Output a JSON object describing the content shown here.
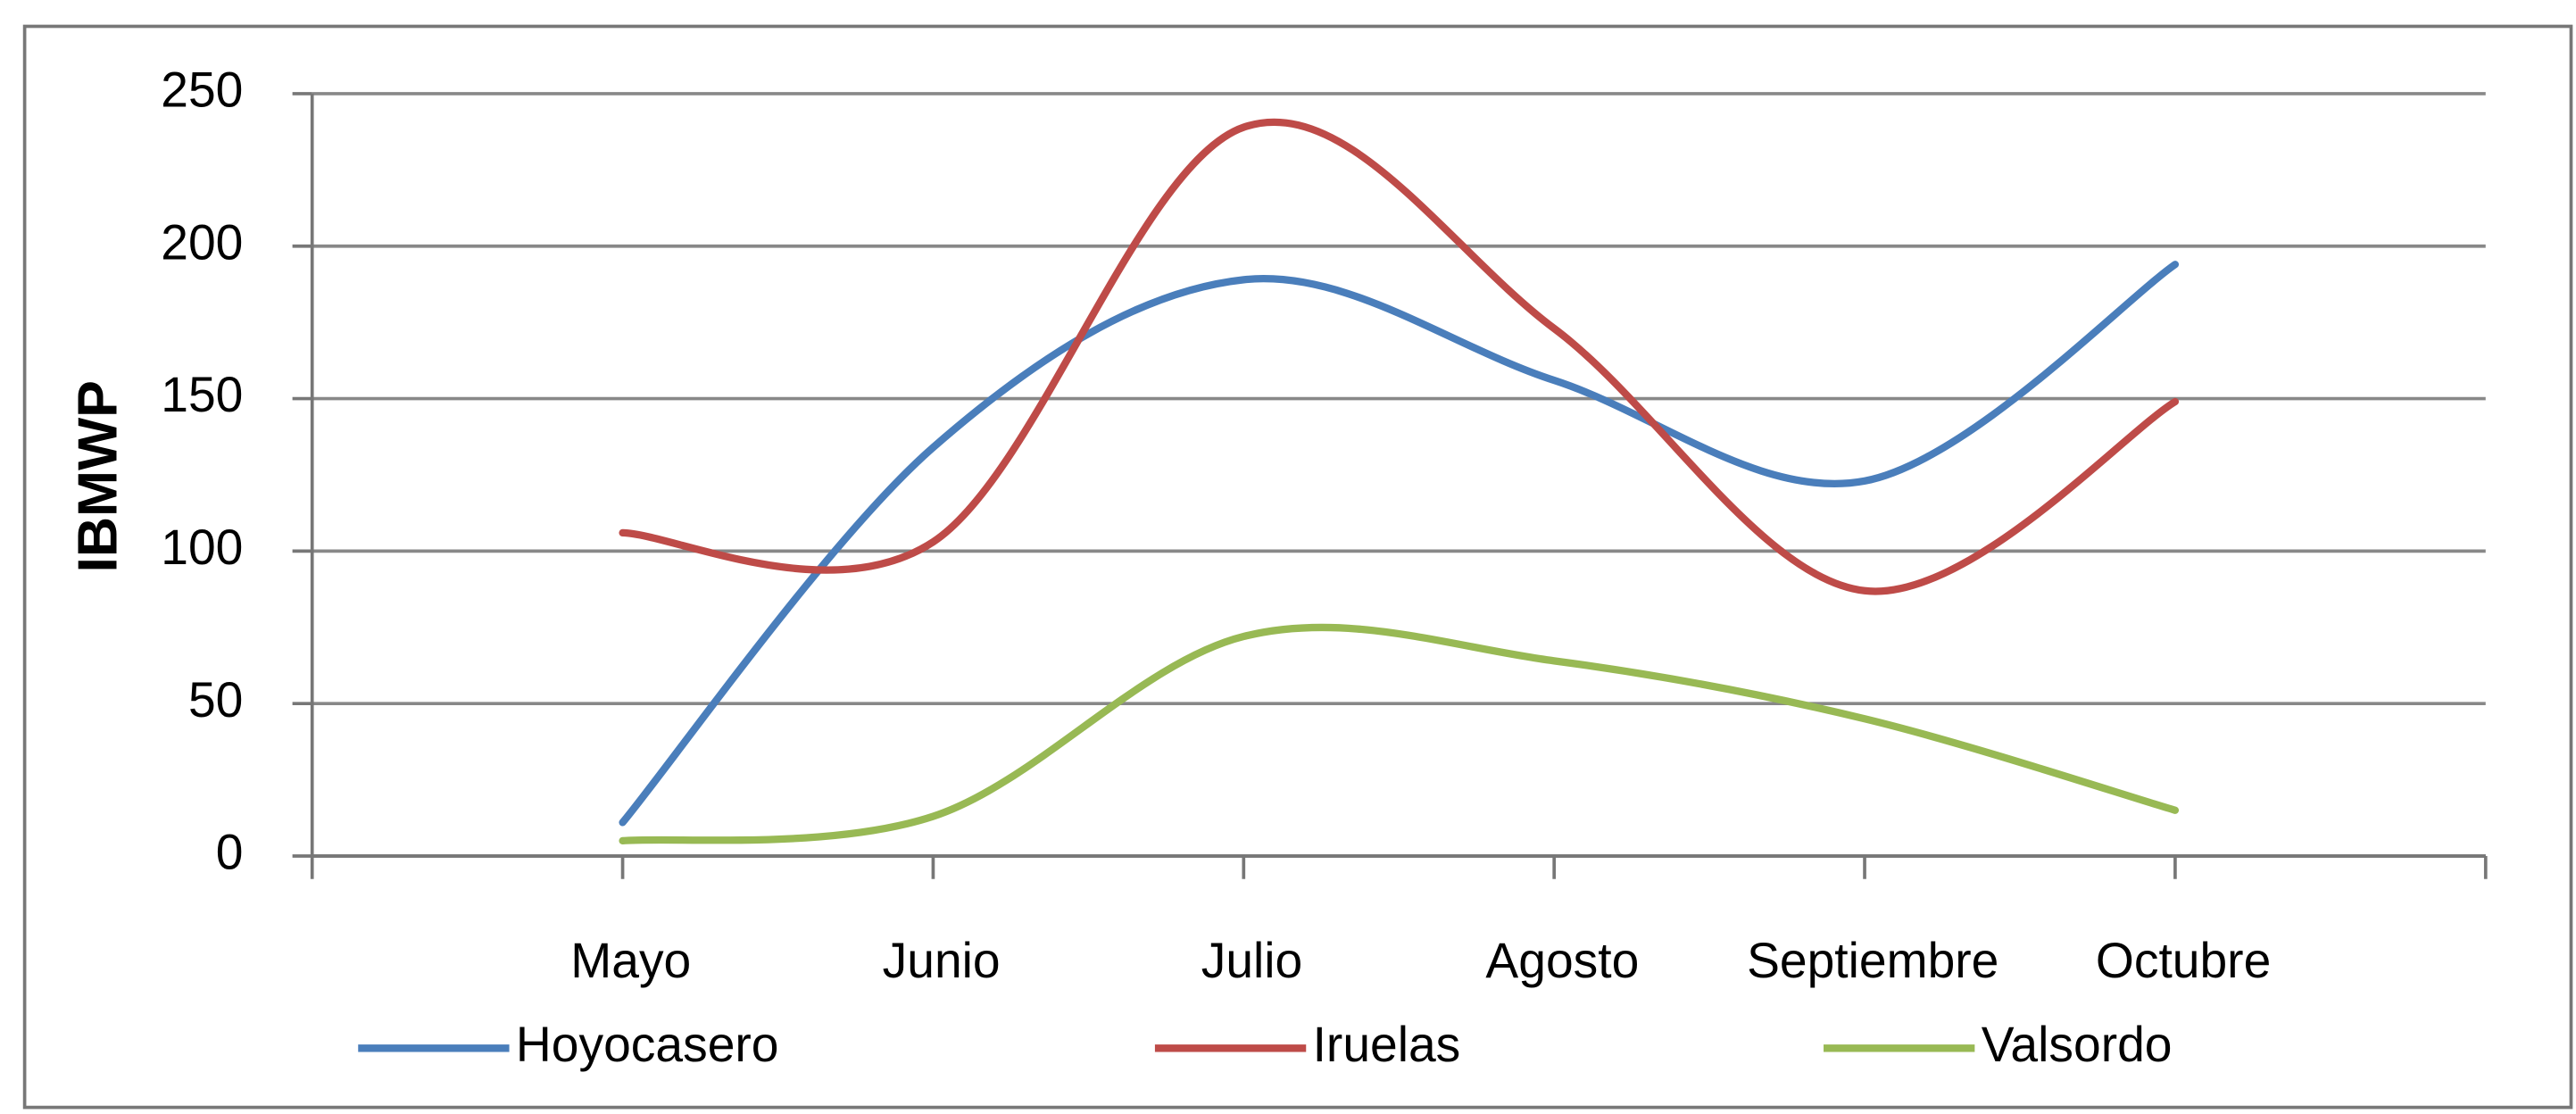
{
  "chart_data": {
    "type": "line",
    "y_label": "IBMWP",
    "categories": [
      null,
      "Mayo",
      "Junio",
      "Julio",
      "Agosto",
      "Septiembre",
      "Octubre",
      null
    ],
    "series": [
      {
        "name": "Hoyocasero",
        "color": "#4a7ebb",
        "values": [
          null,
          11,
          134,
          189,
          156,
          123,
          194,
          null
        ]
      },
      {
        "name": "Iruelas",
        "color": "#be4b48",
        "values": [
          null,
          106,
          103,
          239,
          173,
          87,
          149,
          null
        ]
      },
      {
        "name": "Valsordo",
        "color": "#98b954",
        "values": [
          null,
          5,
          13,
          72,
          64,
          45,
          15,
          null
        ]
      }
    ],
    "ylim": [
      0,
      250
    ],
    "yticks": [
      0,
      50,
      100,
      150,
      200,
      250
    ],
    "grid": true,
    "smooth": true,
    "legend": "bottom"
  }
}
